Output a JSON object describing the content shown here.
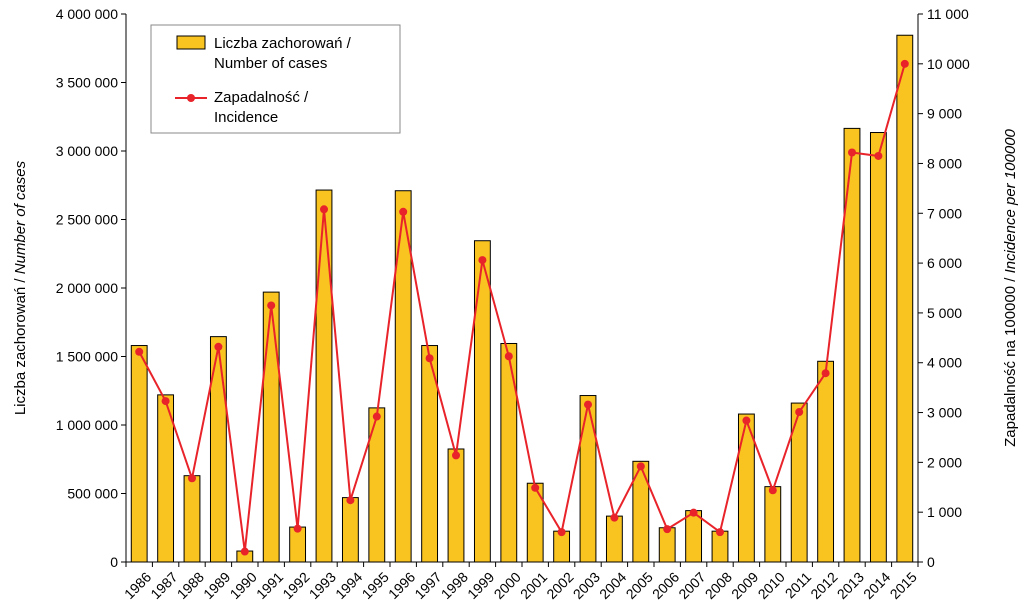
{
  "chart_data": {
    "type": "bar",
    "categories": [
      "1986",
      "1987",
      "1988",
      "1989",
      "1990",
      "1991",
      "1992",
      "1993",
      "1994",
      "1995",
      "1996",
      "1997",
      "1998",
      "1999",
      "2000",
      "2001",
      "2002",
      "2003",
      "2004",
      "2005",
      "2006",
      "2007",
      "2008",
      "2009",
      "2010",
      "2011",
      "2012",
      "2013",
      "2014",
      "2015"
    ],
    "series": [
      {
        "name": "Liczba zachorowań / Number of cases",
        "kind": "bar",
        "axis": "left",
        "color": "#F9C320",
        "values": [
          1580000,
          1220000,
          630000,
          1645000,
          80000,
          1970000,
          255000,
          2715000,
          470000,
          1125000,
          2710000,
          1580000,
          825000,
          2345000,
          1595000,
          575000,
          225000,
          1215000,
          335000,
          735000,
          250000,
          375000,
          225000,
          1080000,
          550000,
          1160000,
          1465000,
          3165000,
          3135000,
          3845000
        ]
      },
      {
        "name": "Zapadalność / Incidence",
        "kind": "line",
        "axis": "right",
        "color": "#E8232A",
        "values": [
          4220,
          3230,
          1680,
          4320,
          210,
          5150,
          670,
          7080,
          1240,
          2920,
          7030,
          4090,
          2140,
          6060,
          4130,
          1490,
          600,
          3160,
          890,
          1920,
          660,
          990,
          600,
          2840,
          1440,
          3010,
          3790,
          8220,
          8150,
          10000
        ]
      }
    ],
    "ylim_left": [
      0,
      4000000
    ],
    "yticks_left": [
      "0",
      "500 000",
      "1 000 000",
      "1 500 000",
      "2 000 000",
      "2 500 000",
      "3 000 000",
      "3 500 000",
      "4 000 000"
    ],
    "ylim_right": [
      0,
      11000
    ],
    "yticks_right": [
      "0",
      "1 000",
      "2 000",
      "3 000",
      "4 000",
      "5 000",
      "6 000",
      "7 000",
      "8 000",
      "9 000",
      "10 000",
      "11 000"
    ],
    "ylabel_left": {
      "plain": "Liczba zachorowań  / ",
      "italic": "Number of cases"
    },
    "ylabel_right": {
      "plain": "Zapadalność na 100000 / ",
      "italic": "Incidence per 100000"
    },
    "legend": {
      "placement": "top-left",
      "entries": [
        {
          "line1": "Liczba zachorowań /",
          "line2": "Number of cases"
        },
        {
          "line1": "Zapadalność /",
          "line2": "Incidence"
        }
      ]
    },
    "grid": false
  }
}
